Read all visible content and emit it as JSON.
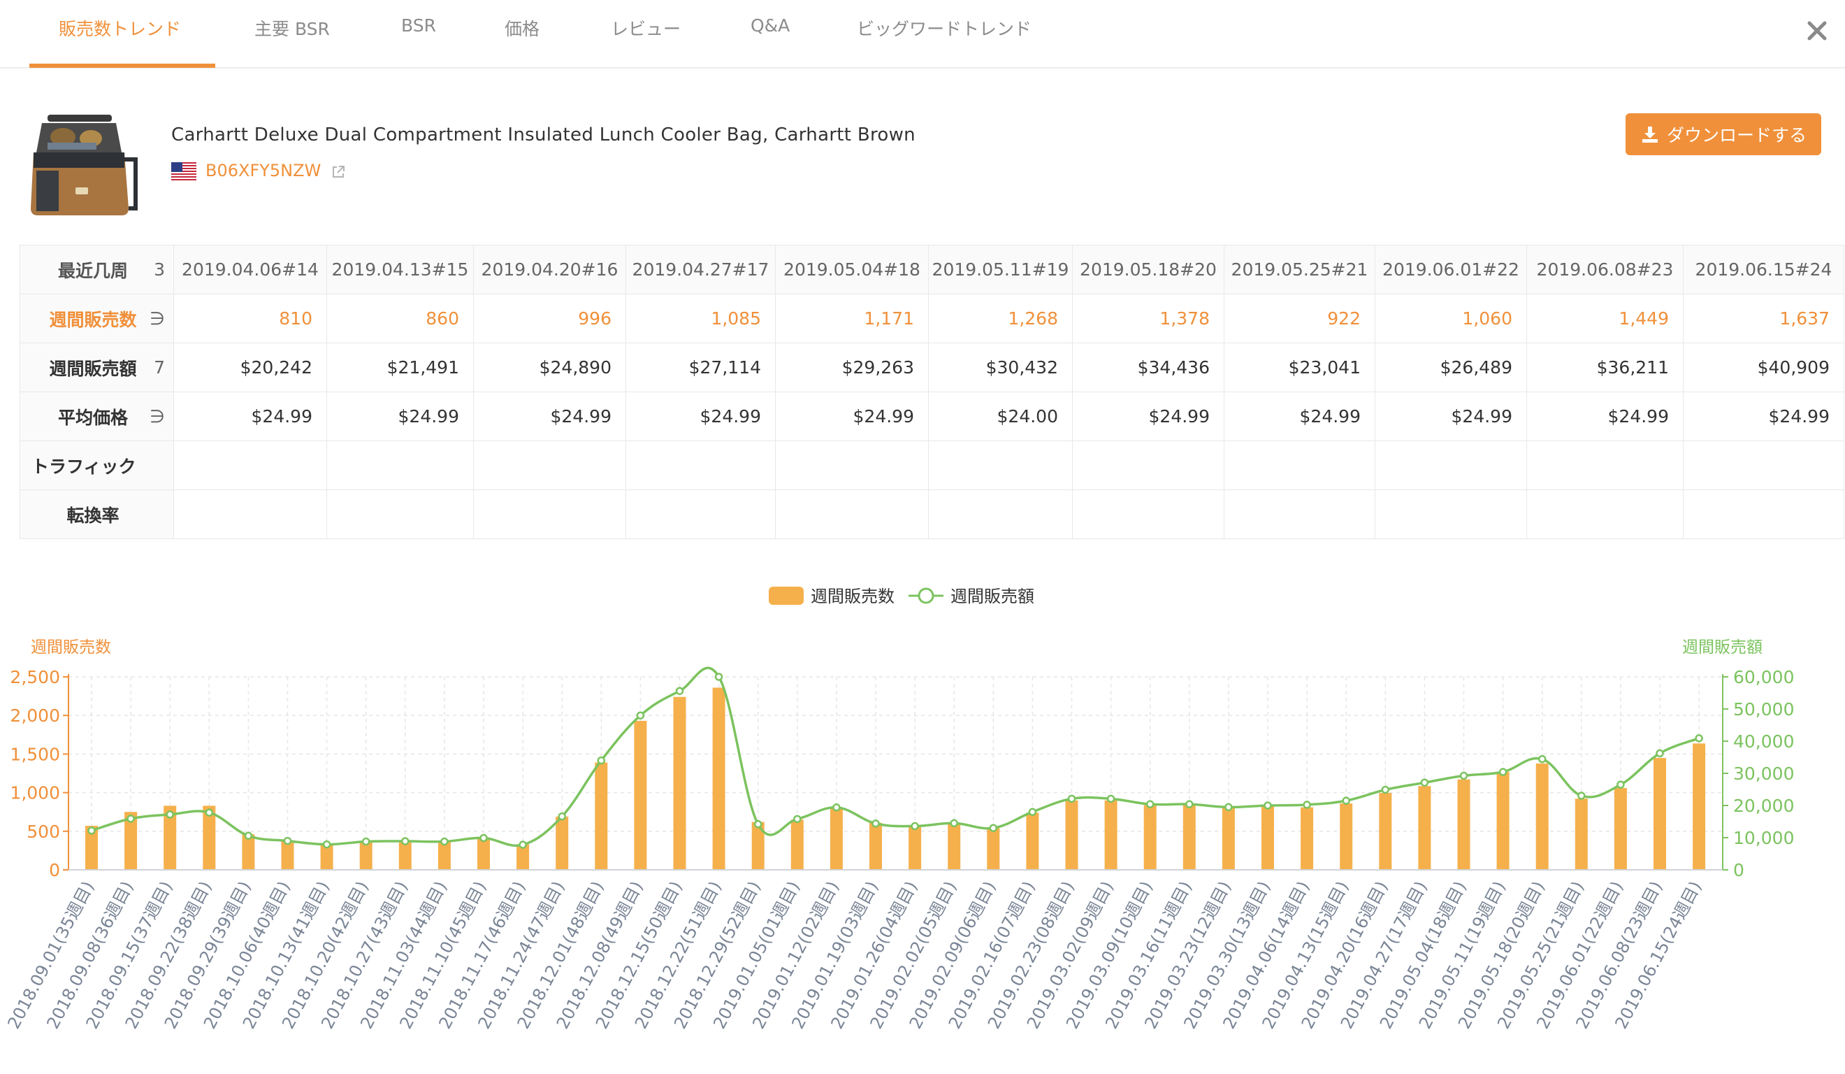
{
  "tabs": [
    {
      "label": "販売数トレンド",
      "active": true
    },
    {
      "label": "主要 BSR",
      "active": false
    },
    {
      "label": "BSR",
      "active": false
    },
    {
      "label": "価格",
      "active": false
    },
    {
      "label": "レビュー",
      "active": false
    },
    {
      "label": "Q&A",
      "active": false
    },
    {
      "label": "ビッグワードトレンド",
      "active": false
    }
  ],
  "product": {
    "title": "Carhartt Deluxe Dual Compartment Insulated Lunch Cooler Bag, Carhartt Brown",
    "asin": "B06XFY5NZW",
    "marketplace_icon": "us-flag-icon"
  },
  "download_button": {
    "label": "ダウンロードする",
    "icon": "download-icon"
  },
  "table": {
    "row_headers": [
      {
        "label": "最近几周",
        "suffix": "3"
      },
      {
        "label": "週間販売数",
        "suffix": "∋"
      },
      {
        "label": "週間販売額",
        "suffix": "7"
      },
      {
        "label": "平均価格",
        "suffix": "∋"
      },
      {
        "label": "トラフィック",
        "suffix": ""
      },
      {
        "label": "転換率",
        "suffix": ""
      }
    ],
    "periods": [
      "2019.04.06#14",
      "2019.04.13#15",
      "2019.04.20#16",
      "2019.04.27#17",
      "2019.05.04#18",
      "2019.05.11#19",
      "2019.05.18#20",
      "2019.05.25#21",
      "2019.06.01#22",
      "2019.06.08#23",
      "2019.06.15#24"
    ],
    "weekly_units": [
      "810",
      "860",
      "996",
      "1,085",
      "1,171",
      "1,268",
      "1,378",
      "922",
      "1,060",
      "1,449",
      "1,637"
    ],
    "weekly_sales": [
      "$20,242",
      "$21,491",
      "$24,890",
      "$27,114",
      "$29,263",
      "$30,432",
      "$34,436",
      "$23,041",
      "$26,489",
      "$36,211",
      "$40,909"
    ],
    "avg_price": [
      "$24.99",
      "$24.99",
      "$24.99",
      "$24.99",
      "$24.99",
      "$24.00",
      "$24.99",
      "$24.99",
      "$24.99",
      "$24.99",
      "$24.99"
    ]
  },
  "colors": {
    "accent": "#f0903a",
    "bar": "#f5b04c",
    "line": "#7cc35f",
    "grid": "#e6e6e6"
  },
  "chart_data": {
    "type": "bar+line",
    "legend": [
      "週間販売数",
      "週間販売額"
    ],
    "legend_position": "top-center",
    "y_left_label": "週間販売数",
    "y_right_label": "週間販売額",
    "y_left_ticks": [
      "0",
      "500",
      "1,000",
      "1,500",
      "2,000",
      "2,500"
    ],
    "y_right_ticks": [
      "0",
      "10,000",
      "20,000",
      "30,000",
      "40,000",
      "50,000",
      "60,000"
    ],
    "y_left_range": [
      0,
      2500
    ],
    "y_right_range": [
      0,
      60000
    ],
    "grid": true,
    "categories": [
      "2018.09.01(35週目)",
      "2018.09.08(36週目)",
      "2018.09.15(37週目)",
      "2018.09.22(38週目)",
      "2018.09.29(39週目)",
      "2018.10.06(40週目)",
      "2018.10.13(41週目)",
      "2018.10.20(42週目)",
      "2018.10.27(43週目)",
      "2018.11.03(44週目)",
      "2018.11.10(45週目)",
      "2018.11.17(46週目)",
      "2018.11.24(47週目)",
      "2018.12.01(48週目)",
      "2018.12.08(49週目)",
      "2018.12.15(50週目)",
      "2018.12.22(51週目)",
      "2018.12.29(52週目)",
      "2019.01.05(01週目)",
      "2019.01.12(02週目)",
      "2019.01.19(03週目)",
      "2019.01.26(04週目)",
      "2019.02.02(05週目)",
      "2019.02.09(06週目)",
      "2019.02.16(07週目)",
      "2019.02.23(08週目)",
      "2019.03.02(09週目)",
      "2019.03.09(10週目)",
      "2019.03.16(11週目)",
      "2019.03.23(12週目)",
      "2019.03.30(13週目)",
      "2019.04.06(14週目)",
      "2019.04.13(15週目)",
      "2019.04.20(16週目)",
      "2019.04.27(17週目)",
      "2019.05.04(18週目)",
      "2019.05.11(19週目)",
      "2019.05.18(20週目)",
      "2019.05.25(21週目)",
      "2019.06.01(22週目)",
      "2019.06.08(23週目)",
      "2019.06.15(24週目)"
    ],
    "series": [
      {
        "name": "週間販売数",
        "type": "bar",
        "axis": "left",
        "values": [
          570,
          750,
          830,
          830,
          460,
          380,
          330,
          370,
          370,
          370,
          420,
          330,
          690,
          1390,
          1930,
          2240,
          2360,
          620,
          650,
          810,
          610,
          580,
          600,
          540,
          740,
          900,
          900,
          840,
          840,
          810,
          830,
          810,
          860,
          996,
          1085,
          1171,
          1268,
          1378,
          922,
          1060,
          1449,
          1637
        ]
      },
      {
        "name": "週間販売額",
        "type": "line",
        "axis": "right",
        "values": [
          12200,
          15900,
          17200,
          17800,
          10600,
          9000,
          7900,
          8800,
          8900,
          8800,
          9900,
          7800,
          16600,
          34000,
          48000,
          55600,
          60000,
          14200,
          15800,
          19400,
          14400,
          13600,
          14500,
          13000,
          18000,
          22100,
          22100,
          20400,
          20400,
          19500,
          20000,
          20242,
          21491,
          24890,
          27114,
          29263,
          30432,
          34436,
          23041,
          26489,
          36211,
          40909
        ]
      }
    ]
  }
}
